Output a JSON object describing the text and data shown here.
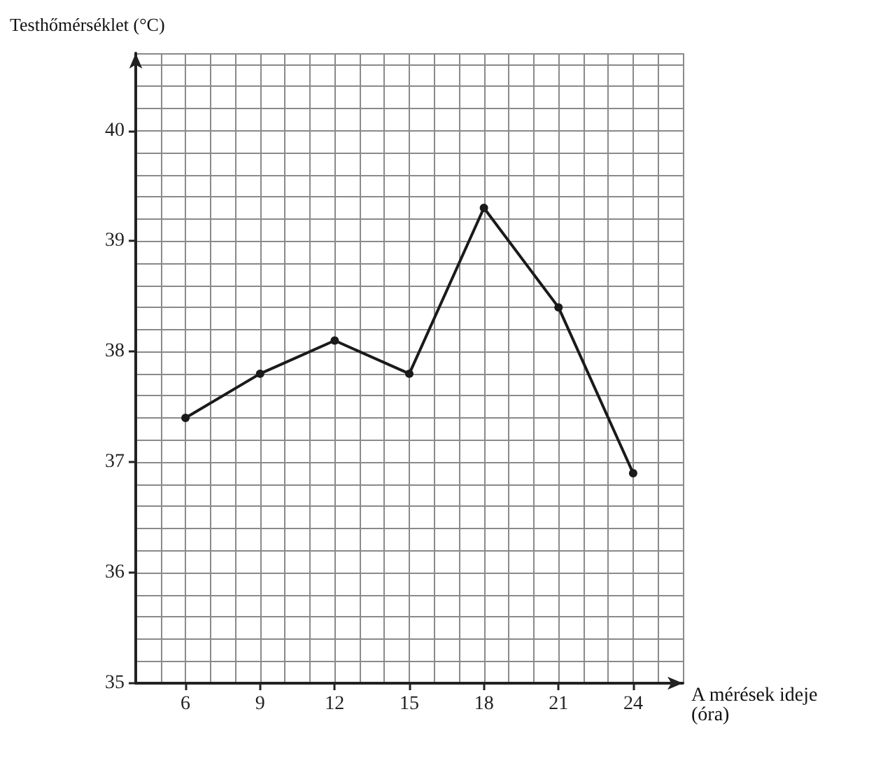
{
  "chart_data": {
    "type": "line",
    "ylabel": "Testhőmérséklet (°C)",
    "xlabel": "A mérések ideje\n(óra)",
    "x": [
      6,
      9,
      12,
      15,
      18,
      21,
      24
    ],
    "series": [
      {
        "color": "#1a1a1a",
        "values": [
          37.4,
          37.8,
          38.1,
          37.8,
          39.3,
          38.4,
          36.9
        ]
      }
    ],
    "xlim": [
      4,
      26
    ],
    "xticks": [
      6,
      9,
      12,
      15,
      18,
      21,
      24
    ],
    "ylim": [
      35,
      40.7
    ],
    "yticks": [
      35,
      36,
      37,
      38,
      39,
      40
    ],
    "grid": true,
    "marker": "circle",
    "line_style": "solid"
  }
}
